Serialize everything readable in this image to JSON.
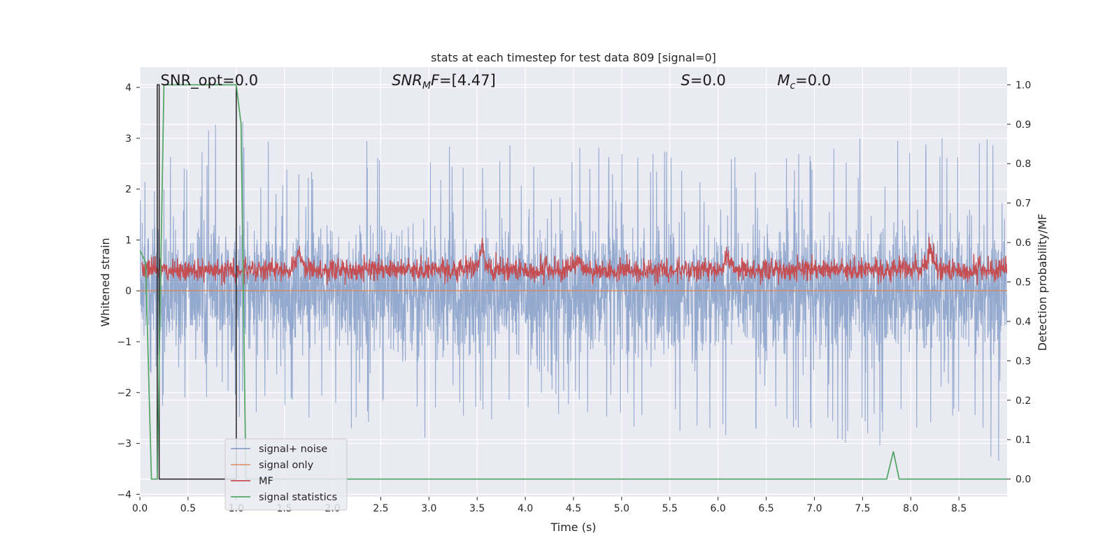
{
  "chart_data": {
    "type": "line",
    "title": "stats at each timestep for test data 809 [signal=0]",
    "xlabel": "Time (s)",
    "ylabel": "Whitened strain",
    "ylabel_right": "Detection probability/MF",
    "xlim": [
      0,
      9.0
    ],
    "ylim": [
      -4.05,
      4.4
    ],
    "ylim_right": [
      -0.045,
      1.045
    ],
    "x_ticks": [
      0.0,
      0.5,
      1.0,
      1.5,
      2.0,
      2.5,
      3.0,
      3.5,
      4.0,
      4.5,
      5.0,
      5.5,
      6.0,
      6.5,
      7.0,
      7.5,
      8.0,
      8.5
    ],
    "y_ticks": [
      -4,
      -3,
      -2,
      -1,
      0,
      1,
      2,
      3,
      4
    ],
    "y_ticks_right": [
      0.0,
      0.1,
      0.2,
      0.3,
      0.4,
      0.5,
      0.6,
      0.7,
      0.8,
      0.9,
      1.0
    ],
    "grid": true,
    "legend_position": "lower-left",
    "annotations": [
      {
        "text": "SNR_opt=0.0",
        "x": 0.2,
        "y": 4.1,
        "style": "normal"
      },
      {
        "text": "MF=[4.47]",
        "x": 2.6,
        "y": 4.1,
        "style": "snr_mf"
      },
      {
        "text": "=0.0",
        "x": 5.6,
        "y": 4.1,
        "style": "s"
      },
      {
        "text": "=0.0",
        "x": 6.6,
        "y": 4.1,
        "style": "mc"
      }
    ],
    "series": [
      {
        "name": "signal+ noise",
        "color": "#4c72b0",
        "axis": "left",
        "envelope": {
          "x": [
            0.0,
            0.5,
            1.0,
            1.5,
            2.0,
            2.5,
            3.0,
            3.5,
            4.0,
            4.5,
            5.0,
            5.5,
            6.0,
            6.5,
            7.0,
            7.5,
            8.0,
            8.5,
            9.0
          ],
          "upper": [
            2.2,
            2.9,
            3.7,
            2.7,
            2.6,
            3.1,
            2.8,
            2.9,
            2.9,
            2.8,
            3.0,
            2.8,
            2.7,
            2.6,
            2.8,
            3.3,
            3.4,
            3.5,
            3.7
          ],
          "lower": [
            -2.4,
            -2.8,
            -2.5,
            -2.5,
            -2.7,
            -2.8,
            -2.9,
            -2.7,
            -2.7,
            -2.4,
            -2.6,
            -3.0,
            -3.1,
            -2.8,
            -2.7,
            -3.2,
            -2.8,
            -3.0,
            -3.6
          ]
        }
      },
      {
        "name": "signal only",
        "color": "#dd8452",
        "axis": "left",
        "x": [
          0.0,
          9.0
        ],
        "y": [
          0.0,
          0.0
        ]
      },
      {
        "name": "MF",
        "color": "#c44e52",
        "axis": "right",
        "baseline": 0.53,
        "peaks": [
          {
            "x": 1.65,
            "y": 0.6
          },
          {
            "x": 3.55,
            "y": 0.6
          },
          {
            "x": 4.55,
            "y": 0.59
          },
          {
            "x": 6.1,
            "y": 0.59
          },
          {
            "x": 8.2,
            "y": 0.61
          }
        ]
      },
      {
        "name": "signal statistics",
        "color": "#55a868",
        "axis": "right",
        "x": [
          0.0,
          0.06,
          0.12,
          0.18,
          0.25,
          0.5,
          0.75,
          1.0,
          1.05,
          1.1,
          2.0,
          3.0,
          4.0,
          5.0,
          6.0,
          7.0,
          7.75,
          7.82,
          7.88,
          8.5,
          9.0
        ],
        "y": [
          0.58,
          0.55,
          0.0,
          0.0,
          1.0,
          1.0,
          1.0,
          1.0,
          0.9,
          0.0,
          0.0,
          0.0,
          0.0,
          0.0,
          0.0,
          0.0,
          0.0,
          0.07,
          0.0,
          0.0,
          0.0
        ]
      },
      {
        "name": "",
        "color": "#222222",
        "axis": "right",
        "x": [
          0.18,
          0.18,
          0.2,
          0.2,
          1.0,
          1.0
        ],
        "y": [
          0.0,
          1.0,
          1.0,
          0.0,
          0.0,
          1.0
        ]
      }
    ]
  }
}
